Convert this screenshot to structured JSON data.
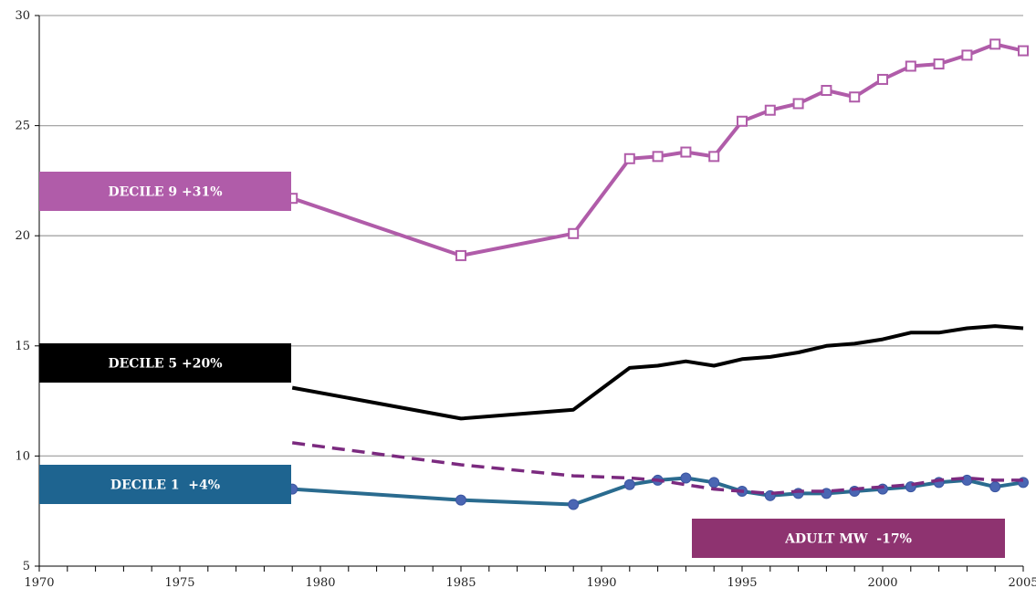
{
  "chart_data": {
    "type": "line",
    "xlim": [
      1970,
      2005
    ],
    "ylim": [
      5,
      30
    ],
    "x_ticks": [
      1970,
      1975,
      1980,
      1985,
      1990,
      1995,
      2000,
      2005
    ],
    "y_ticks": [
      5,
      10,
      15,
      20,
      25,
      30
    ],
    "grid": "horizontal",
    "x": [
      1979,
      1985,
      1989,
      1991,
      1992,
      1993,
      1994,
      1995,
      1996,
      1997,
      1998,
      1999,
      2000,
      2001,
      2002,
      2003,
      2004,
      2005
    ],
    "series": [
      {
        "name": "DECILE 9 +31%",
        "color": "#b05ca9",
        "marker": "open-square",
        "values": [
          21.7,
          19.1,
          20.1,
          23.5,
          23.6,
          23.8,
          23.6,
          25.2,
          25.7,
          26.0,
          26.6,
          26.3,
          27.1,
          27.7,
          27.8,
          28.2,
          28.7,
          28.4
        ]
      },
      {
        "name": "DECILE 5 +20%",
        "color": "#000000",
        "marker": "none",
        "values": [
          13.1,
          11.7,
          12.1,
          14.0,
          14.1,
          14.3,
          14.1,
          14.4,
          14.5,
          14.7,
          15.0,
          15.1,
          15.3,
          15.6,
          15.6,
          15.8,
          15.9,
          15.8
        ]
      },
      {
        "name": "DECILE 1  +4%",
        "color": "#2a6b8f",
        "marker": "filled-circle",
        "values": [
          8.5,
          8.0,
          7.8,
          8.7,
          8.9,
          9.0,
          8.8,
          8.4,
          8.2,
          8.3,
          8.3,
          8.4,
          8.5,
          8.6,
          8.8,
          8.9,
          8.6,
          8.8
        ]
      },
      {
        "name": "ADULT MW  -17%",
        "color": "#7b2a7f",
        "marker": "dashed",
        "values": [
          10.6,
          9.6,
          9.1,
          9.0,
          8.9,
          8.7,
          8.5,
          8.4,
          8.3,
          8.4,
          8.4,
          8.5,
          8.6,
          8.7,
          8.9,
          9.0,
          8.9,
          8.9
        ]
      }
    ]
  },
  "labels": [
    {
      "text": "DECILE 9 +31%",
      "bg": "#b05ca9"
    },
    {
      "text": "DECILE 5 +20%",
      "bg": "#000000"
    },
    {
      "text": "DECILE 1  +4%",
      "bg": "#1e6490"
    },
    {
      "text": "ADULT MW  -17%",
      "bg": "#8e3370"
    }
  ]
}
